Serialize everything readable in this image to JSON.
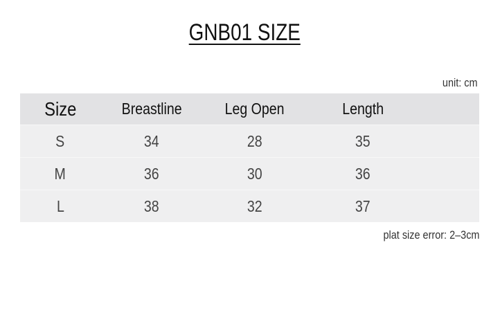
{
  "title": "GNB01 SIZE",
  "unit": "unit: cm",
  "table": {
    "headers": [
      "Size",
      "Breastline",
      "Leg Open",
      "Length"
    ],
    "rows": [
      [
        "S",
        "34",
        "28",
        "35"
      ],
      [
        "M",
        "36",
        "30",
        "36"
      ],
      [
        "L",
        "38",
        "32",
        "37"
      ]
    ]
  },
  "note": "plat size error: 2–3cm",
  "colors": {
    "header_bg": "#e2e2e4",
    "row_bg": "#efeff0"
  }
}
